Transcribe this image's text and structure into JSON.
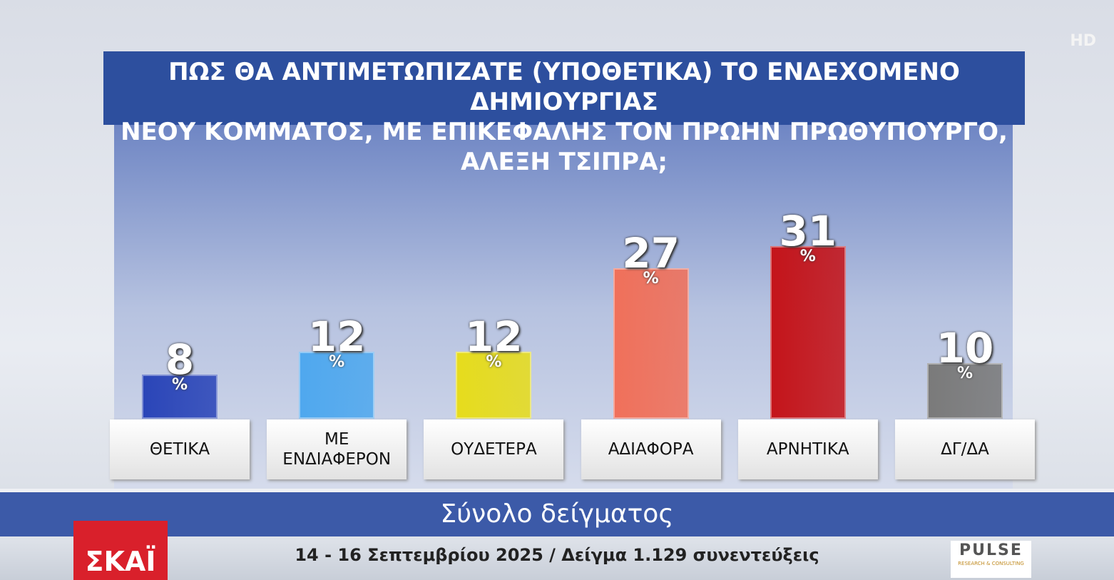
{
  "chart_data": {
    "type": "bar",
    "title_lines": [
      "ΠΩΣ ΘΑ ΑΝΤΙΜΕΤΩΠΙΖΑΤΕ (ΥΠΟΘΕΤΙΚΑ) ΤΟ ΕΝΔΕΧΟΜΕΝΟ ΔΗΜΙΟΥΡΓΙΑΣ",
      "ΝΕΟΥ ΚΟΜΜΑΤΟΣ, ΜΕ ΕΠΙΚΕΦΑΛΗΣ ΤΟΝ ΠΡΩΗΝ ΠΡΩΘΥΠΟΥΡΓΟ, ΑΛΕΞΗ ΤΣΙΠΡΑ;"
    ],
    "categories": [
      "ΘΕΤΙΚΑ",
      "ΜΕ ΕΝΔΙΑΦΕΡΟΝ",
      "ΟΥΔΕΤΕΡΑ",
      "ΑΔΙΑΦΟΡΑ",
      "ΑΡΝΗΤΙΚΑ",
      "ΔΓ/ΔΑ"
    ],
    "values": [
      8,
      12,
      12,
      27,
      31,
      10
    ],
    "unit": "%",
    "colors": [
      "#2a45b8",
      "#4fa8ee",
      "#e6dc1c",
      "#f0705a",
      "#c4141a",
      "#7a7a7a"
    ],
    "subtitle": "Σύνολο δείγματος",
    "footnote": "14 - 16 Σεπτεμβρίου 2025 / Δείγμα 1.129 συνεντεύξεις",
    "channel_logo": "ΣΚΑΪ",
    "pollster_logo": "PULSE",
    "pollster_tagline": "RESEARCH & CONSULTING",
    "badge": "HD"
  }
}
